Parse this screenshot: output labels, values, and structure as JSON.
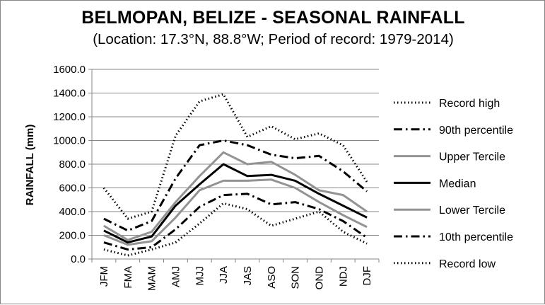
{
  "chart_data": {
    "type": "line",
    "title": "BELMOPAN, BELIZE - SEASONAL RAINFALL",
    "subtitle": "(Location: 17.3°N, 88.8°W; Period of record: 1979-2014)",
    "xlabel": "",
    "ylabel": "RAINFALL (mm)",
    "ylim": [
      0,
      1600
    ],
    "yticks": [
      "0.0",
      "200.0",
      "400.0",
      "600.0",
      "800.0",
      "1000.0",
      "1200.0",
      "1400.0",
      "1600.0"
    ],
    "categories": [
      "JFM",
      "FMA",
      "MAM",
      "AMJ",
      "MJJ",
      "JJA",
      "JAS",
      "ASO",
      "SON",
      "OND",
      "NDJ",
      "DJF"
    ],
    "grid": true,
    "legend_position": "right",
    "series": [
      {
        "name": "Record high",
        "color": "#000000",
        "style": "dotted",
        "values": [
          600,
          340,
          400,
          1040,
          1330,
          1390,
          1030,
          1120,
          1010,
          1060,
          960,
          650
        ]
      },
      {
        "name": "90th percentile",
        "color": "#000000",
        "style": "dashdot",
        "values": [
          340,
          240,
          320,
          680,
          960,
          1000,
          960,
          880,
          850,
          870,
          740,
          570
        ]
      },
      {
        "name": "Upper Tercile",
        "color": "#939393",
        "style": "solid",
        "values": [
          280,
          160,
          230,
          480,
          700,
          900,
          800,
          820,
          710,
          580,
          540,
          400
        ]
      },
      {
        "name": "Median",
        "color": "#000000",
        "style": "solid",
        "values": [
          240,
          140,
          190,
          450,
          630,
          800,
          700,
          710,
          660,
          550,
          450,
          350
        ]
      },
      {
        "name": "Lower Tercile",
        "color": "#939393",
        "style": "solid",
        "values": [
          200,
          120,
          150,
          350,
          580,
          660,
          660,
          670,
          600,
          480,
          370,
          270
        ]
      },
      {
        "name": "10th percentile",
        "color": "#000000",
        "style": "dashdot",
        "values": [
          140,
          80,
          100,
          250,
          440,
          540,
          550,
          460,
          480,
          420,
          320,
          180
        ]
      },
      {
        "name": "Record low",
        "color": "#000000",
        "style": "dotted",
        "values": [
          80,
          30,
          80,
          140,
          300,
          470,
          420,
          280,
          340,
          400,
          230,
          130
        ]
      }
    ]
  }
}
